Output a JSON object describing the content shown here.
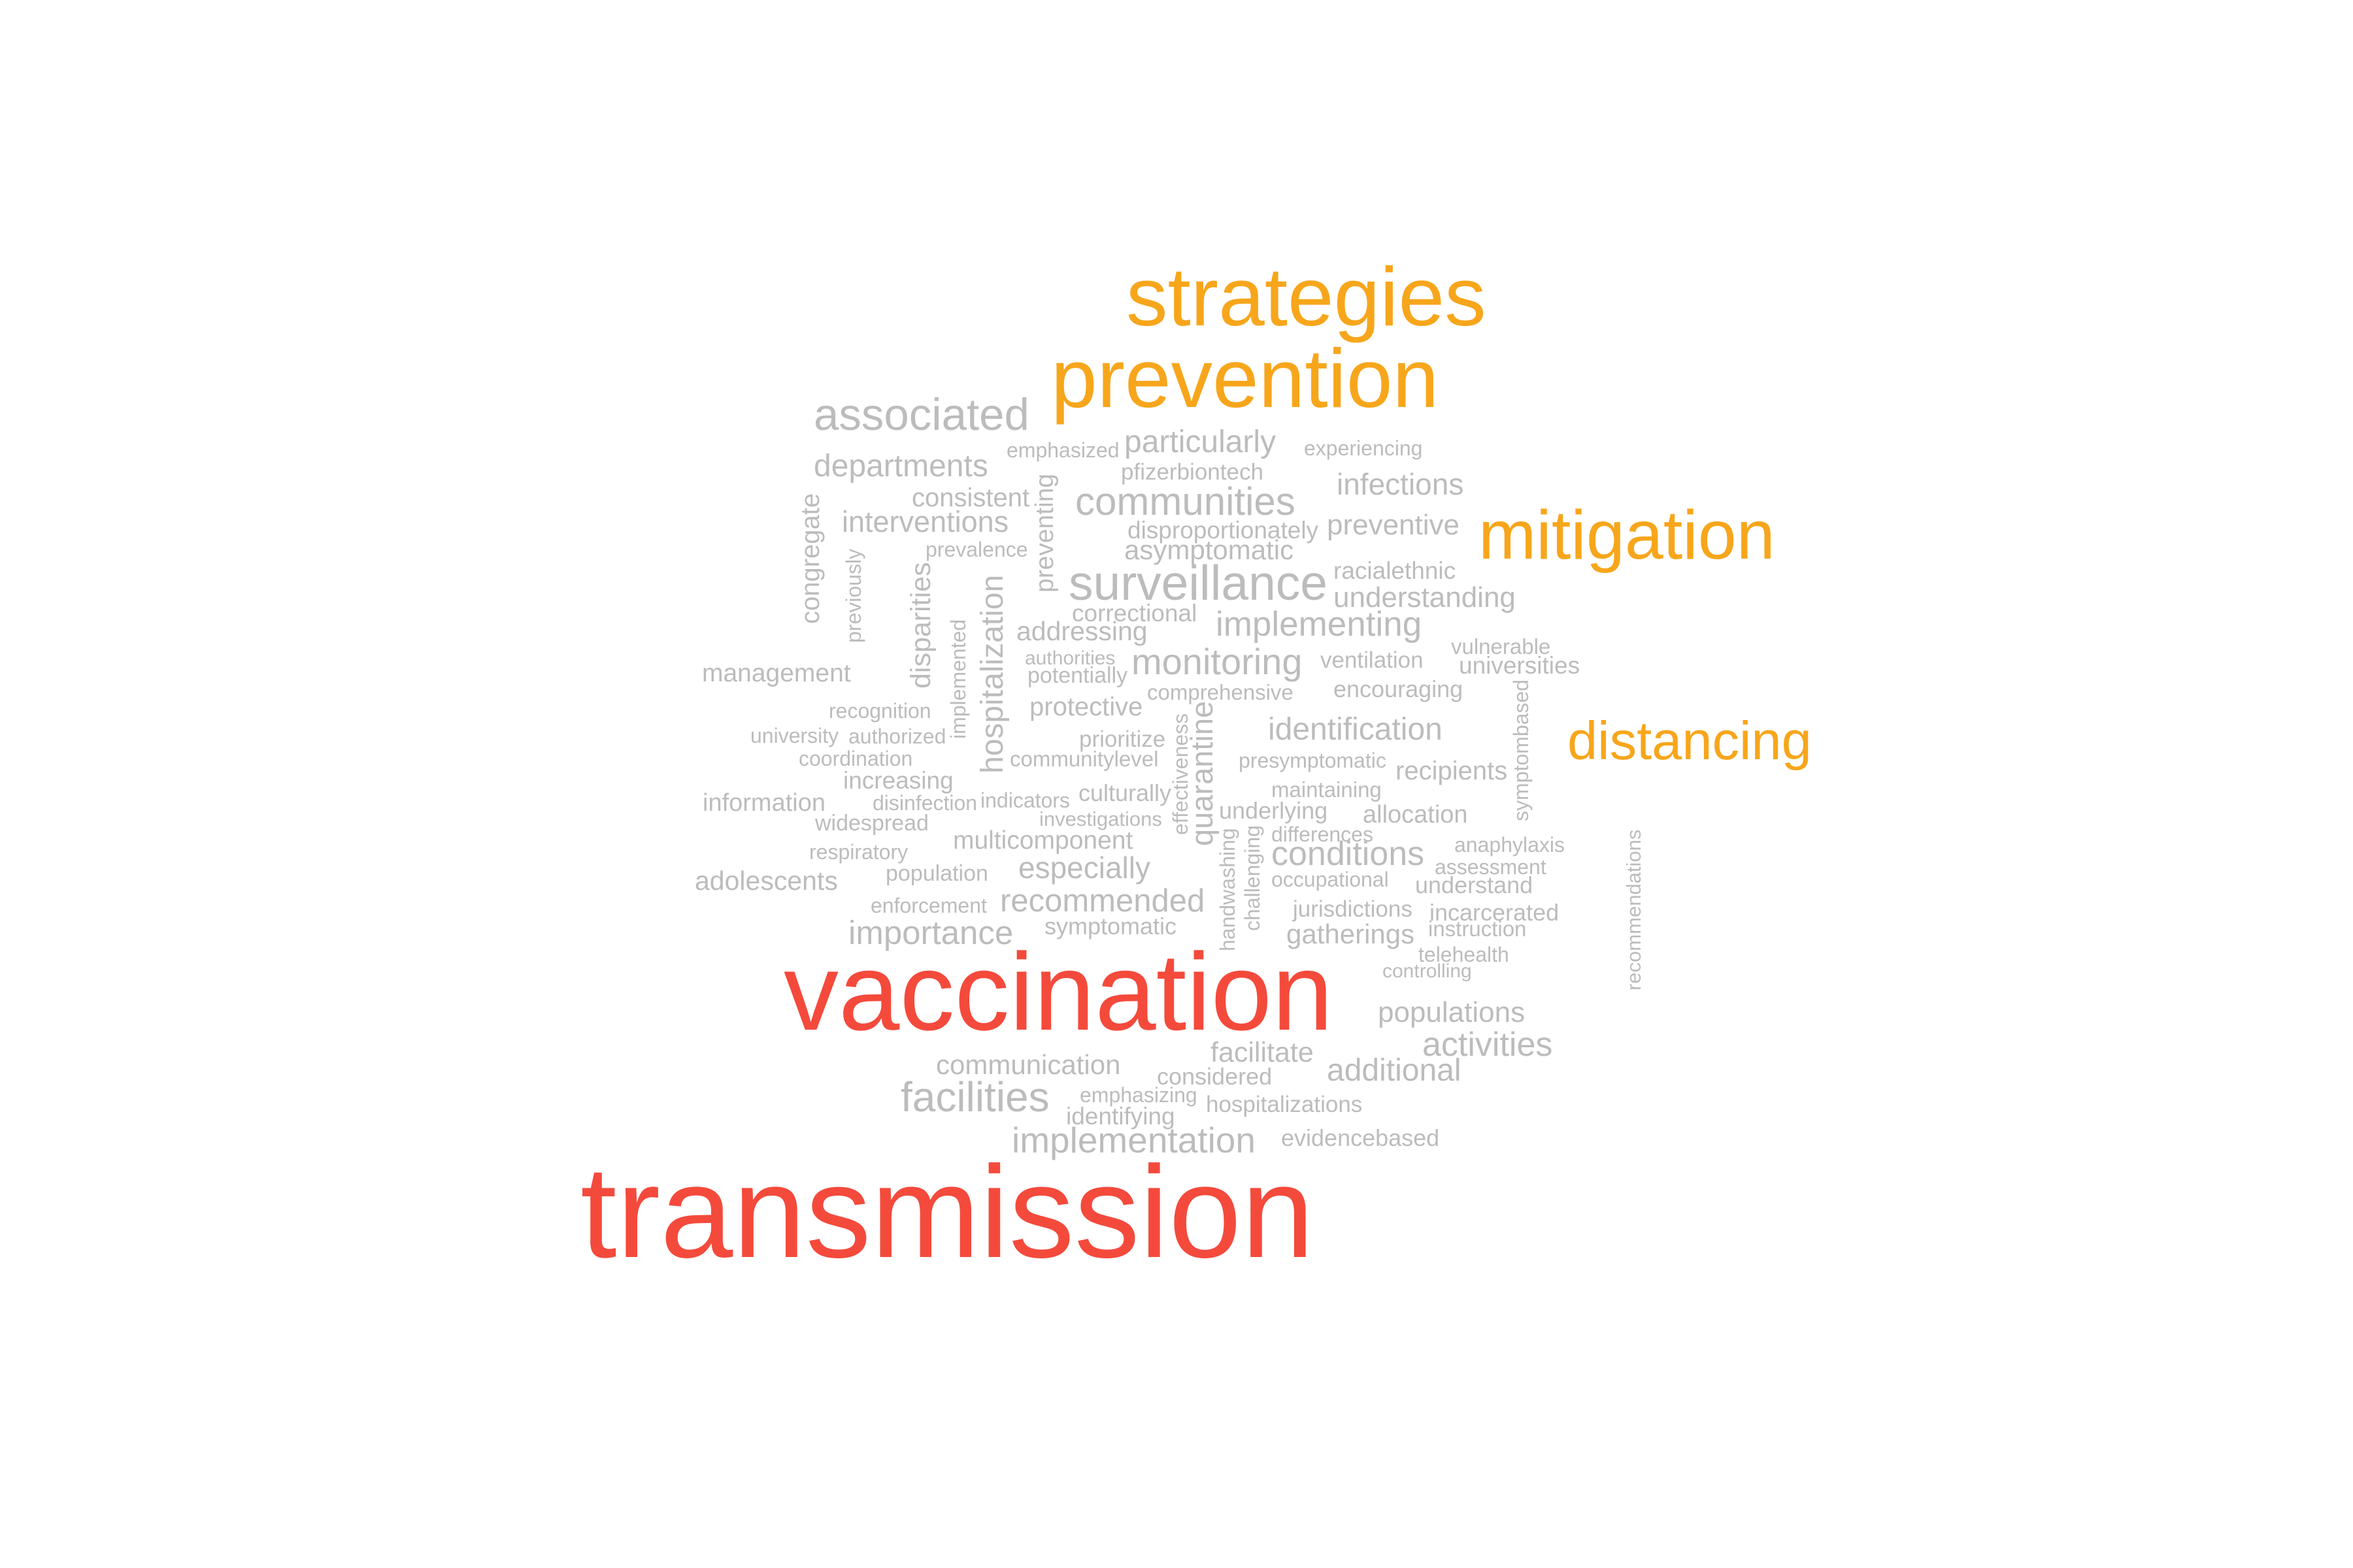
{
  "cloud": {
    "palette": {
      "high": "#f44a3c",
      "mid": "#f7a61b",
      "low": "#bcbcbc"
    },
    "words": [
      {
        "text": "transmission",
        "tier": "high"
      },
      {
        "text": "vaccination",
        "tier": "high"
      },
      {
        "text": "strategies",
        "tier": "mid"
      },
      {
        "text": "prevention",
        "tier": "mid"
      },
      {
        "text": "mitigation",
        "tier": "mid"
      },
      {
        "text": "distancing",
        "tier": "mid"
      },
      {
        "text": "associated",
        "tier": "low"
      },
      {
        "text": "departments",
        "tier": "low"
      },
      {
        "text": "emphasized",
        "tier": "low"
      },
      {
        "text": "particularly",
        "tier": "low"
      },
      {
        "text": "experiencing",
        "tier": "low"
      },
      {
        "text": "pfizerbiontech",
        "tier": "low"
      },
      {
        "text": "infections",
        "tier": "low"
      },
      {
        "text": "consistent",
        "tier": "low"
      },
      {
        "text": "communities",
        "tier": "low"
      },
      {
        "text": "interventions",
        "tier": "low"
      },
      {
        "text": "disproportionately",
        "tier": "low"
      },
      {
        "text": "preventive",
        "tier": "low"
      },
      {
        "text": "prevalence",
        "tier": "low"
      },
      {
        "text": "asymptomatic",
        "tier": "low"
      },
      {
        "text": "racialethnic",
        "tier": "low"
      },
      {
        "text": "surveillance",
        "tier": "low"
      },
      {
        "text": "understanding",
        "tier": "low"
      },
      {
        "text": "correctional",
        "tier": "low"
      },
      {
        "text": "addressing",
        "tier": "low"
      },
      {
        "text": "implementing",
        "tier": "low"
      },
      {
        "text": "vulnerable",
        "tier": "low"
      },
      {
        "text": "authorities",
        "tier": "low"
      },
      {
        "text": "monitoring",
        "tier": "low"
      },
      {
        "text": "ventilation",
        "tier": "low"
      },
      {
        "text": "universities",
        "tier": "low"
      },
      {
        "text": "management",
        "tier": "low"
      },
      {
        "text": "potentially",
        "tier": "low"
      },
      {
        "text": "comprehensive",
        "tier": "low"
      },
      {
        "text": "encouraging",
        "tier": "low"
      },
      {
        "text": "recognition",
        "tier": "low"
      },
      {
        "text": "protective",
        "tier": "low"
      },
      {
        "text": "university",
        "tier": "low"
      },
      {
        "text": "authorized",
        "tier": "low"
      },
      {
        "text": "prioritize",
        "tier": "low"
      },
      {
        "text": "identification",
        "tier": "low"
      },
      {
        "text": "coordination",
        "tier": "low"
      },
      {
        "text": "communitylevel",
        "tier": "low"
      },
      {
        "text": "presymptomatic",
        "tier": "low"
      },
      {
        "text": "recipients",
        "tier": "low"
      },
      {
        "text": "increasing",
        "tier": "low"
      },
      {
        "text": "maintaining",
        "tier": "low"
      },
      {
        "text": "information",
        "tier": "low"
      },
      {
        "text": "disinfection",
        "tier": "low"
      },
      {
        "text": "indicators",
        "tier": "low"
      },
      {
        "text": "culturally",
        "tier": "low"
      },
      {
        "text": "investigations",
        "tier": "low"
      },
      {
        "text": "underlying",
        "tier": "low"
      },
      {
        "text": "allocation",
        "tier": "low"
      },
      {
        "text": "widespread",
        "tier": "low"
      },
      {
        "text": "differences",
        "tier": "low"
      },
      {
        "text": "multicomponent",
        "tier": "low"
      },
      {
        "text": "anaphylaxis",
        "tier": "low"
      },
      {
        "text": "respiratory",
        "tier": "low"
      },
      {
        "text": "conditions",
        "tier": "low"
      },
      {
        "text": "assessment",
        "tier": "low"
      },
      {
        "text": "especially",
        "tier": "low"
      },
      {
        "text": "adolescents",
        "tier": "low"
      },
      {
        "text": "population",
        "tier": "low"
      },
      {
        "text": "occupational",
        "tier": "low"
      },
      {
        "text": "understand",
        "tier": "low"
      },
      {
        "text": "recommended",
        "tier": "low"
      },
      {
        "text": "enforcement",
        "tier": "low"
      },
      {
        "text": "jurisdictions",
        "tier": "low"
      },
      {
        "text": "incarcerated",
        "tier": "low"
      },
      {
        "text": "symptomatic",
        "tier": "low"
      },
      {
        "text": "instruction",
        "tier": "low"
      },
      {
        "text": "importance",
        "tier": "low"
      },
      {
        "text": "gatherings",
        "tier": "low"
      },
      {
        "text": "telehealth",
        "tier": "low"
      },
      {
        "text": "controlling",
        "tier": "low"
      },
      {
        "text": "populations",
        "tier": "low"
      },
      {
        "text": "activities",
        "tier": "low"
      },
      {
        "text": "facilitate",
        "tier": "low"
      },
      {
        "text": "communication",
        "tier": "low"
      },
      {
        "text": "additional",
        "tier": "low"
      },
      {
        "text": "considered",
        "tier": "low"
      },
      {
        "text": "emphasizing",
        "tier": "low"
      },
      {
        "text": "facilities",
        "tier": "low"
      },
      {
        "text": "identifying",
        "tier": "low"
      },
      {
        "text": "hospitalizations",
        "tier": "low"
      },
      {
        "text": "implementation",
        "tier": "low"
      },
      {
        "text": "evidencebased",
        "tier": "low"
      },
      {
        "text": "congregate",
        "tier": "low"
      },
      {
        "text": "previously",
        "tier": "low"
      },
      {
        "text": "disparities",
        "tier": "low"
      },
      {
        "text": "implemented",
        "tier": "low"
      },
      {
        "text": "hospitalization",
        "tier": "low"
      },
      {
        "text": "preventing",
        "tier": "low"
      },
      {
        "text": "effectiveness",
        "tier": "low"
      },
      {
        "text": "quarantine",
        "tier": "low"
      },
      {
        "text": "handwashing",
        "tier": "low"
      },
      {
        "text": "challenging",
        "tier": "low"
      },
      {
        "text": "symptombased",
        "tier": "low"
      },
      {
        "text": "recommendations",
        "tier": "low"
      }
    ]
  }
}
